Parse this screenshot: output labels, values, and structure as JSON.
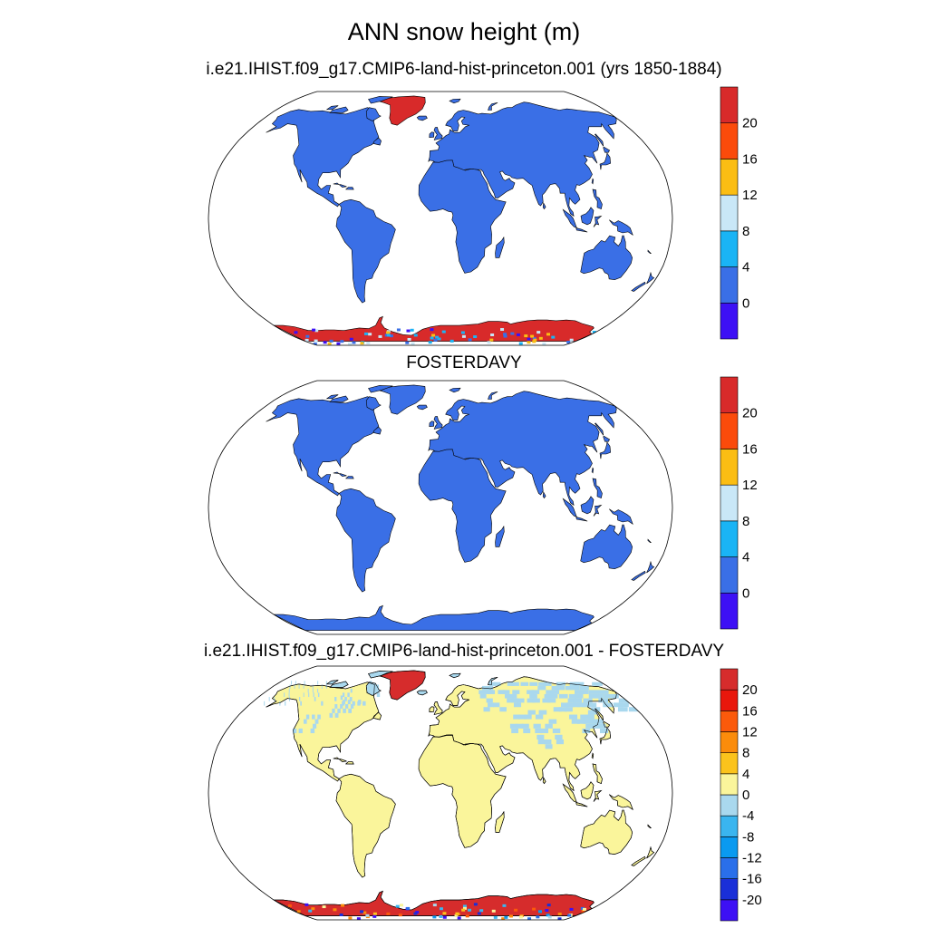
{
  "title": "ANN snow height (m)",
  "panels": [
    {
      "title": "i.e21.IHIST.f09_g17.CMIP6-land-hist-princeton.001 (yrs 1850-1884)",
      "colorbar": {
        "colors": [
          "#3d10f5",
          "#3a6fe6",
          "#1ab4f5",
          "#c9e7f7",
          "#fbbd13",
          "#fb4b0b",
          "#d82a2a"
        ],
        "labels": [
          "0",
          "4",
          "8",
          "12",
          "16",
          "20"
        ]
      },
      "land_color": "#3a6fe6",
      "greenland_color": "#d82a2a",
      "antarctica_color": "#d82a2a"
    },
    {
      "title": "FOSTERDAVY",
      "colorbar": {
        "colors": [
          "#3d10f5",
          "#3a6fe6",
          "#1ab4f5",
          "#c9e7f7",
          "#fbbd13",
          "#fb4b0b",
          "#d82a2a"
        ],
        "labels": [
          "0",
          "4",
          "8",
          "12",
          "16",
          "20"
        ]
      },
      "land_color": "#3a6fe6",
      "greenland_color": "#3a6fe6",
      "antarctica_color": "#3a6fe6"
    },
    {
      "title": "i.e21.IHIST.f09_g17.CMIP6-land-hist-princeton.001 - FOSTERDAVY",
      "colorbar": {
        "colors": [
          "#3d10f5",
          "#1a2fd8",
          "#2a6fea",
          "#0a9af0",
          "#3ab5ef",
          "#a9d8ee",
          "#faf59b",
          "#fbc31c",
          "#fb8c0b",
          "#fb5a0b",
          "#e9170c",
          "#d62c2c"
        ],
        "labels": [
          "-20",
          "-16",
          "-12",
          "-8",
          "-4",
          "0",
          "4",
          "8",
          "12",
          "16",
          "20"
        ]
      },
      "land_color": "#faf59b",
      "greenland_color": "#d62c2c",
      "antarctica_color": "#d62c2c",
      "arctic_land_color": "#a9d8ee"
    }
  ]
}
